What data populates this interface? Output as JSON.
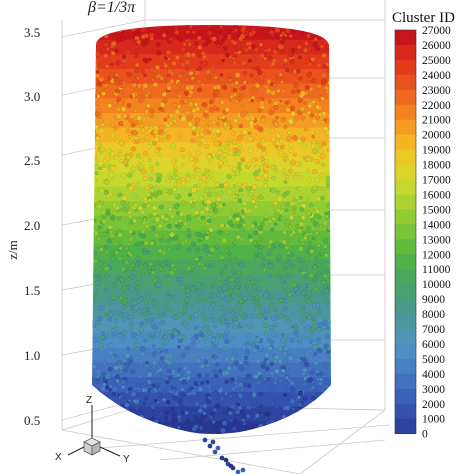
{
  "header": {
    "formula": "β=1/3π"
  },
  "axis": {
    "ylabel": "z/m",
    "ticks": [
      "3.5",
      "3.0",
      "2.5",
      "2.0",
      "1.5",
      "1.0",
      "0.5"
    ]
  },
  "triad": {
    "z": "Z",
    "x": "X",
    "y": "Y"
  },
  "colorbar": {
    "title": "Cluster ID",
    "labels": [
      "27000",
      "26000",
      "25000",
      "24000",
      "23000",
      "22000",
      "21000",
      "20000",
      "19000",
      "18000",
      "17000",
      "16000",
      "15000",
      "14000",
      "13000",
      "12000",
      "11000",
      "10000",
      "9000",
      "8000",
      "7000",
      "6000",
      "5000",
      "4000",
      "3000",
      "2000",
      "1000",
      "0"
    ],
    "colors": [
      "#c8151b",
      "#d8281e",
      "#e23c1d",
      "#e9521d",
      "#ef6a1e",
      "#f3821f",
      "#f59c22",
      "#f4b424",
      "#ecc827",
      "#dcd42a",
      "#c6d82e",
      "#acd332",
      "#92cc35",
      "#7ac438",
      "#62bb3c",
      "#4fb14a",
      "#4aa75e",
      "#48a173",
      "#489b88",
      "#4a989e",
      "#4e96b6",
      "#4d8ec4",
      "#4880c3",
      "#4272bf",
      "#3b62b8",
      "#3452ad",
      "#2d43a0",
      "#283792"
    ]
  }
}
